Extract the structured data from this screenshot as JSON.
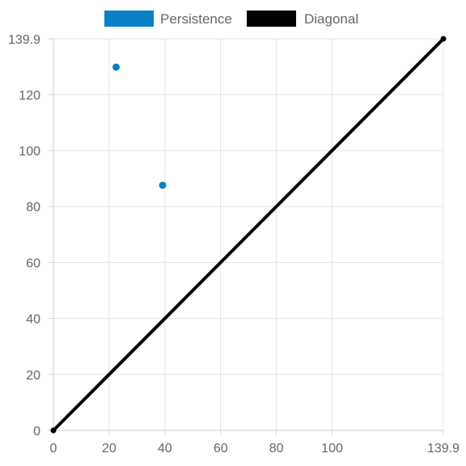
{
  "chart_data": {
    "type": "scatter",
    "title": "",
    "xlabel": "",
    "ylabel": "",
    "xlim": [
      0,
      139.9
    ],
    "ylim": [
      0,
      139.9
    ],
    "x_ticks": [
      "0",
      "20",
      "40",
      "60",
      "80",
      "100",
      "139.9"
    ],
    "y_ticks": [
      "0",
      "20",
      "40",
      "60",
      "80",
      "100",
      "120",
      "139.9"
    ],
    "grid": true,
    "legend_position": "top-center",
    "series": [
      {
        "name": "Persistence",
        "type": "scatter",
        "color": "#0a80c8",
        "points": [
          {
            "x": 22.5,
            "y": 129.8
          },
          {
            "x": 39.2,
            "y": 87.6
          }
        ]
      },
      {
        "name": "Diagonal",
        "type": "line",
        "color": "#000000",
        "points": [
          {
            "x": 0,
            "y": 0
          },
          {
            "x": 139.9,
            "y": 139.9
          }
        ]
      }
    ]
  }
}
